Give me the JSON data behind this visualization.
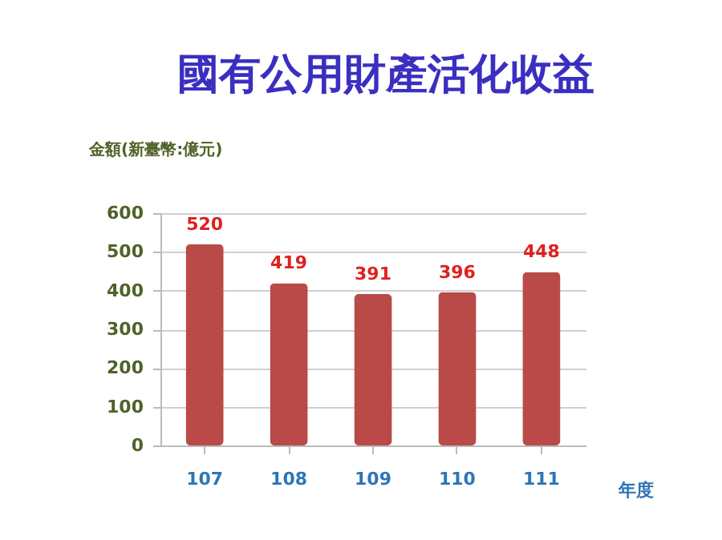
{
  "chart_data": {
    "type": "bar",
    "title": "國有公用財產活化收益",
    "ylabel": "金額(新臺幣:億元)",
    "xlabel": "年度",
    "categories": [
      "107",
      "108",
      "109",
      "110",
      "111"
    ],
    "values": [
      520,
      419,
      391,
      396,
      448
    ],
    "color": "#b94a48",
    "ylim": [
      0,
      600
    ],
    "yticks": [
      0,
      100,
      200,
      300,
      400,
      500,
      600
    ],
    "grid": "y",
    "data_labels": true
  }
}
